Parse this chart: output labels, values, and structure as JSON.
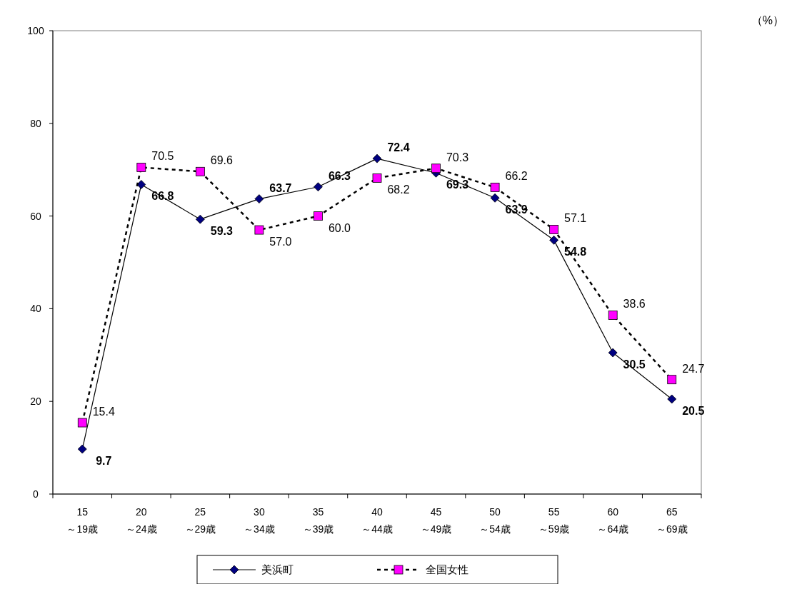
{
  "chart_data": {
    "type": "line",
    "categories": [
      "15\n～19歳",
      "20\n～24歳",
      "25\n～29歳",
      "30\n～34歳",
      "35\n～39歳",
      "40\n～44歳",
      "45\n～49歳",
      "50\n～54歳",
      "55\n～59歳",
      "60\n～64歳",
      "65\n～69歳"
    ],
    "series": [
      {
        "name": "美浜町",
        "color": "#000080",
        "marker": "diamond",
        "line_style": "solid",
        "values": [
          9.7,
          66.8,
          59.3,
          63.7,
          66.3,
          72.4,
          69.3,
          63.9,
          54.8,
          30.5,
          20.5
        ],
        "value_labels": [
          "9.7",
          "66.8",
          "59.3",
          "63.7",
          "66.3",
          "72.4",
          "69.3",
          "63.9",
          "54.8",
          "30.5",
          "20.5"
        ]
      },
      {
        "name": "全国女性",
        "color": "#ff00ff",
        "marker": "square",
        "line_style": "dashed",
        "values": [
          15.4,
          70.5,
          69.6,
          57.0,
          60.0,
          68.2,
          70.3,
          66.2,
          57.1,
          38.6,
          24.7
        ],
        "value_labels": [
          "15.4",
          "70.5",
          "69.6",
          "57.0",
          "60.0",
          "68.2",
          "70.3",
          "66.2",
          "57.1",
          "38.6",
          "24.7"
        ]
      }
    ],
    "ylim": [
      0,
      100
    ],
    "yticks": [
      0,
      20,
      40,
      60,
      80,
      100
    ],
    "grid": false,
    "legend": "bottom",
    "annotations": [
      "（%）"
    ]
  }
}
